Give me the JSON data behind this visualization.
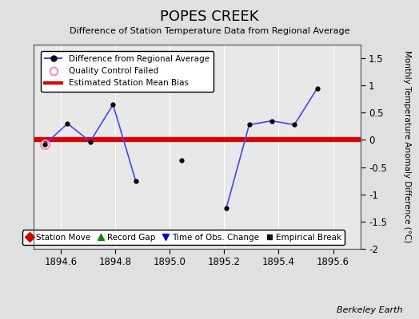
{
  "title": "POPES CREEK",
  "subtitle": "Difference of Station Temperature Data from Regional Average",
  "ylabel_right": "Monthly Temperature Anomaly Difference (°C)",
  "background_color": "#e0e0e0",
  "plot_bg_color": "#e8e8e8",
  "bias_value": 0.0,
  "xlim": [
    1894.5,
    1895.7
  ],
  "ylim": [
    -2.0,
    1.75
  ],
  "xticks": [
    1894.6,
    1894.8,
    1895.0,
    1895.2,
    1895.4,
    1895.6
  ],
  "yticks": [
    -2.0,
    -1.5,
    -1.0,
    -0.5,
    0.0,
    0.5,
    1.0,
    1.5
  ],
  "main_line_color": "#4444ff",
  "main_marker_color": "#000000",
  "bias_color": "#dd0000",
  "qc_color": "#ff88cc",
  "isolated_x": [
    1895.042
  ],
  "isolated_y": [
    -0.38
  ],
  "segment1_x": [
    1894.542,
    1894.625,
    1894.708,
    1894.792,
    1894.875
  ],
  "segment1_y": [
    -0.08,
    0.3,
    -0.03,
    0.65,
    -0.75
  ],
  "segment2_x": [
    1895.208,
    1895.292,
    1895.375,
    1895.458,
    1895.542
  ],
  "segment2_y": [
    -1.25,
    0.28,
    0.35,
    0.28,
    0.95
  ],
  "qc_failed_x": [
    1894.542
  ],
  "qc_failed_y": [
    -0.08
  ],
  "watermark": "Berkeley Earth",
  "legend1_labels": [
    "Difference from Regional Average",
    "Quality Control Failed",
    "Estimated Station Mean Bias"
  ],
  "legend2_labels": [
    "Station Move",
    "Record Gap",
    "Time of Obs. Change",
    "Empirical Break"
  ],
  "legend2_colors": [
    "#cc0000",
    "#008800",
    "#0000cc",
    "#111111"
  ],
  "legend2_markers": [
    "D",
    "^",
    "v",
    "s"
  ]
}
